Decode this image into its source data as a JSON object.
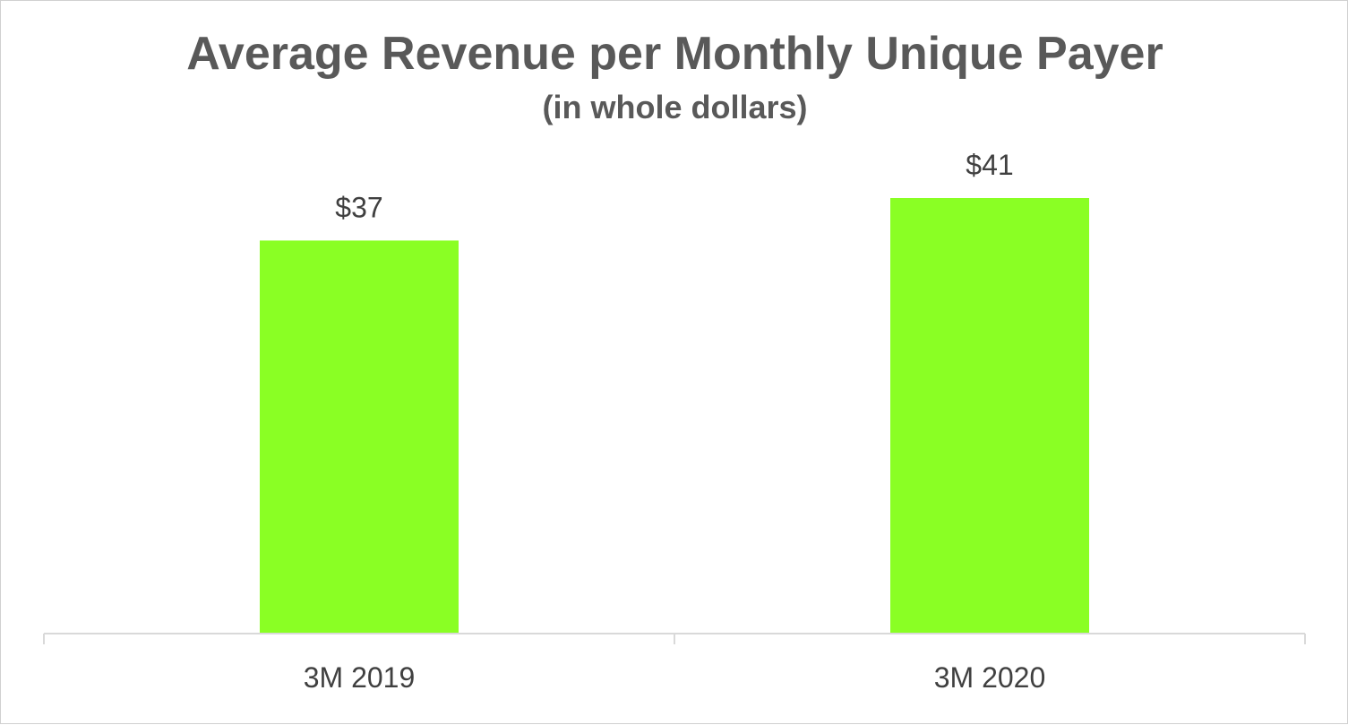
{
  "chart_data": {
    "type": "bar",
    "title": "Average Revenue per Monthly Unique Payer",
    "subtitle": "(in whole dollars)",
    "categories": [
      "3M 2019",
      "3M 2020"
    ],
    "values": [
      37,
      41
    ],
    "data_labels": [
      "$37",
      "$41"
    ],
    "xlabel": "",
    "ylabel": "",
    "ylim": [
      0,
      41
    ],
    "grid": false,
    "legend": "none",
    "bar_color": "#8aff24",
    "axis_color": "#d9d9d9",
    "text_color": "#595959"
  }
}
